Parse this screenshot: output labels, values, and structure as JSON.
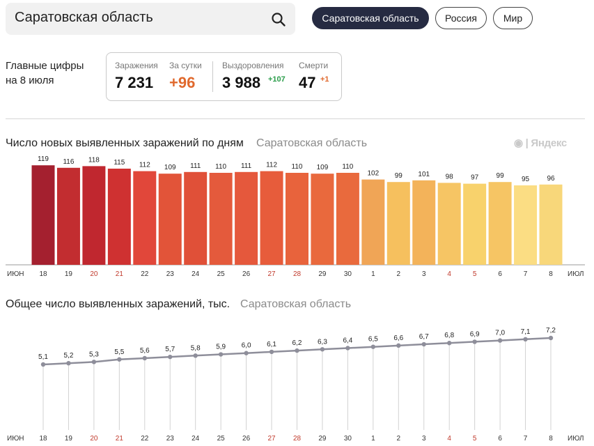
{
  "search": {
    "value": "Саратовская область"
  },
  "region_buttons": [
    {
      "label": "Саратовская область",
      "active": true
    },
    {
      "label": "Россия",
      "active": false
    },
    {
      "label": "Мир",
      "active": false
    }
  ],
  "key_figures": {
    "title_line1": "Главные цифры",
    "title_line2": "на 8 июля",
    "infections_label": "Заражения",
    "infections_value": "7 231",
    "daily_label": "За сутки",
    "daily_value": "+96",
    "recovered_label": "Выздоровления",
    "recovered_value": "3 988",
    "recovered_delta": "+107",
    "deaths_label": "Смерти",
    "deaths_value": "47",
    "deaths_delta": "+1"
  },
  "watermark": "◉ | Яндекс",
  "colors": {
    "bars": [
      "#a4202f",
      "#c22d30",
      "#c0272f",
      "#cf3131",
      "#e1473a",
      "#e25439",
      "#e05038",
      "#e45a3c",
      "#e5583c",
      "#e75c3b",
      "#e8633c",
      "#e9693d",
      "#e96a3d",
      "#f0a556",
      "#f6c05e",
      "#f3b35a",
      "#f6c564",
      "#f8d26c",
      "#f6c564",
      "#fbdd83",
      "#f8d77a"
    ],
    "line": "#8e8e9a",
    "weekend_tick": "#c0392b",
    "tick": "#333333"
  },
  "chart_data": [
    {
      "type": "bar",
      "title": "Число новых выявленных заражений по дням",
      "subtitle": "Саратовская область",
      "month_start_label": "ИЮН",
      "month_end_label": "ИЮЛ",
      "categories": [
        "18",
        "19",
        "20",
        "21",
        "22",
        "23",
        "24",
        "25",
        "26",
        "27",
        "28",
        "29",
        "30",
        "1",
        "2",
        "3",
        "4",
        "5",
        "6",
        "7",
        "8"
      ],
      "weekend_categories": [
        "20",
        "21",
        "27",
        "28",
        "4",
        "5"
      ],
      "values": [
        119,
        116,
        118,
        115,
        112,
        109,
        111,
        110,
        111,
        112,
        110,
        109,
        110,
        102,
        99,
        101,
        98,
        97,
        99,
        95,
        96
      ],
      "ylim": [
        0,
        125
      ]
    },
    {
      "type": "line",
      "title": "Общее число выявленных заражений, тыс.",
      "subtitle": "Саратовская область",
      "month_start_label": "ИЮН",
      "month_end_label": "ИЮЛ",
      "categories": [
        "18",
        "19",
        "20",
        "21",
        "22",
        "23",
        "24",
        "25",
        "26",
        "27",
        "28",
        "29",
        "30",
        "1",
        "2",
        "3",
        "4",
        "5",
        "6",
        "7",
        "8"
      ],
      "weekend_categories": [
        "20",
        "21",
        "27",
        "28",
        "4",
        "5"
      ],
      "values": [
        5.1,
        5.2,
        5.3,
        5.5,
        5.6,
        5.7,
        5.8,
        5.9,
        6.0,
        6.1,
        6.2,
        6.3,
        6.4,
        6.5,
        6.6,
        6.7,
        6.8,
        6.9,
        7.0,
        7.1,
        7.2
      ],
      "value_labels": [
        "5,1",
        "5,2",
        "5,3",
        "5,5",
        "5,6",
        "5,7",
        "5,8",
        "5,9",
        "6,0",
        "6,1",
        "6,2",
        "6,3",
        "6,4",
        "6,5",
        "6,6",
        "6,7",
        "6,8",
        "6,9",
        "7,0",
        "7,1",
        "7,2"
      ]
    }
  ]
}
